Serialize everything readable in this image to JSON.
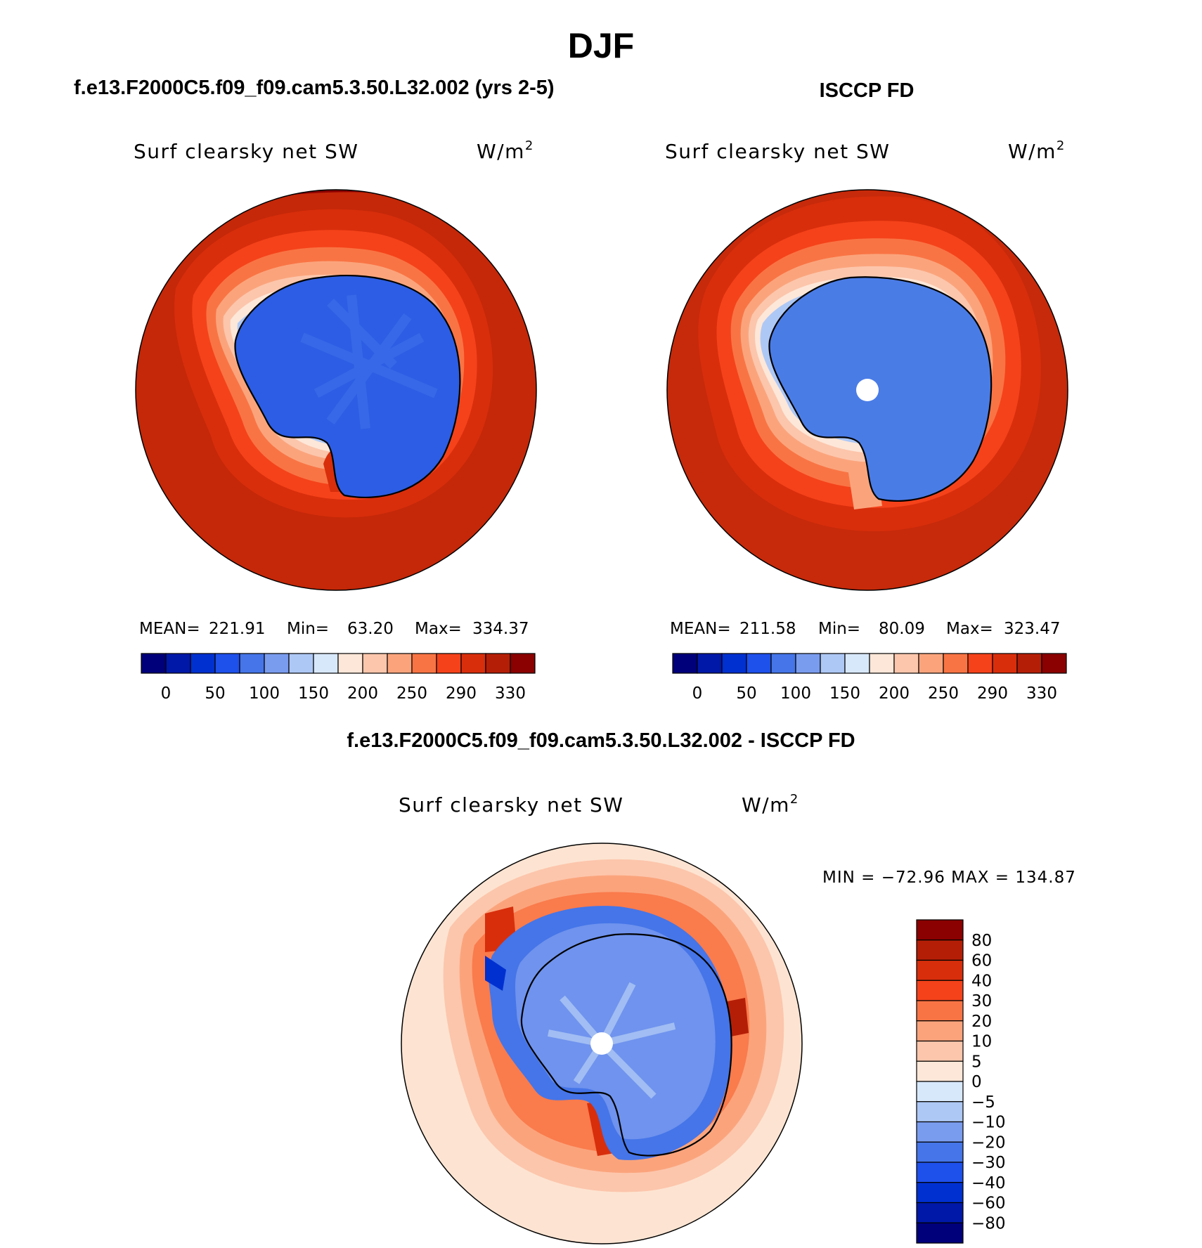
{
  "title": "DJF",
  "colors": {
    "abs": [
      "#00007a",
      "#0018a8",
      "#0030d0",
      "#1e50ec",
      "#4575e8",
      "#7a9cef",
      "#aec8f5",
      "#d8e8fb",
      "#fde7d8",
      "#fcc6ac",
      "#fba47c",
      "#f97444",
      "#f5421a",
      "#d82e0c",
      "#b51e06",
      "#8b0000"
    ],
    "diff": [
      "#00007a",
      "#0018a8",
      "#0030d0",
      "#1e50ec",
      "#4575e8",
      "#7a9cef",
      "#aec8f5",
      "#d8e8fb",
      "#fde7d8",
      "#fcc6ac",
      "#fba47c",
      "#f97444",
      "#f5421a",
      "#d82e0c",
      "#b51e06",
      "#8b0000"
    ],
    "ocean_abs": "#c42808",
    "ocean_obs": "#c62a0a",
    "ocean_diff": "#fde4d2",
    "ice_model": "#2c5de4",
    "ice_obs": "#4a7ce6",
    "ice_diff": "#6f93ee"
  },
  "chart_data": [
    {
      "type": "map",
      "heading": "f.e13.F2000C5.f09_f09.cam5.3.50.L32.002 (yrs 2-5)",
      "variable": "Surf clearsky net SW",
      "units": "W/m",
      "units_sup": "2",
      "stats": {
        "mean_label": "MEAN=",
        "mean": "221.91",
        "min_label": "Min=",
        "min": "63.20",
        "max_label": "Max=",
        "max": "334.37"
      },
      "colorbar_ticks": [
        "0",
        "50",
        "100",
        "150",
        "200",
        "250",
        "290",
        "330"
      ]
    },
    {
      "type": "map",
      "heading": "ISCCP FD",
      "variable": "Surf clearsky net SW",
      "units": "W/m",
      "units_sup": "2",
      "stats": {
        "mean_label": "MEAN=",
        "mean": "211.58",
        "min_label": "Min=",
        "min": "80.09",
        "max_label": "Max=",
        "max": "323.47"
      },
      "colorbar_ticks": [
        "0",
        "50",
        "100",
        "150",
        "200",
        "250",
        "290",
        "330"
      ]
    },
    {
      "type": "map",
      "heading": "f.e13.F2000C5.f09_f09.cam5.3.50.L32.002 - ISCCP FD",
      "variable": "Surf clearsky net SW",
      "units": "W/m",
      "units_sup": "2",
      "minmax": "MIN = −72.96 MAX = 134.87",
      "colorbar_ticks": [
        "80",
        "60",
        "40",
        "30",
        "20",
        "10",
        "5",
        "0",
        "−5",
        "−10",
        "−20",
        "−30",
        "−40",
        "−60",
        "−80"
      ]
    }
  ]
}
